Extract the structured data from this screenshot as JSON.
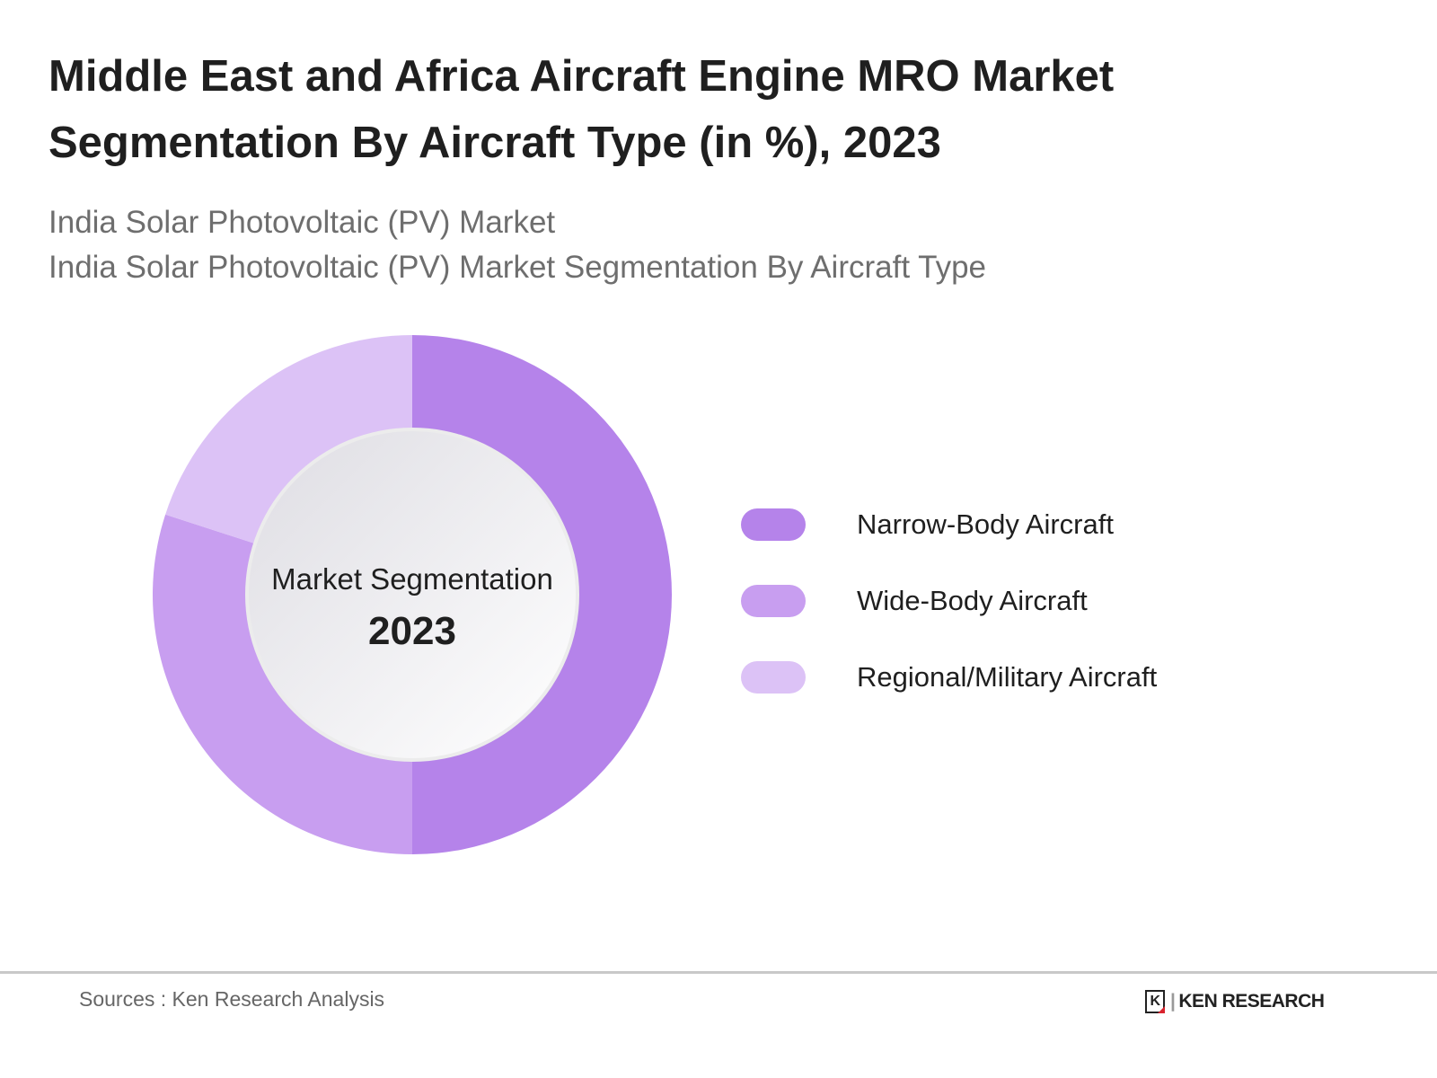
{
  "header": {
    "title_line1": "Middle East and Africa Aircraft Engine MRO Market",
    "title_line2": "Segmentation By Aircraft Type (in %), 2023",
    "subtitle_line1": "India Solar Photovoltaic (PV) Market",
    "subtitle_line2": "India Solar Photovoltaic (PV) Market Segmentation By Aircraft Type"
  },
  "chart_data": {
    "type": "pie",
    "variant": "donut",
    "center_label": "Market Segmentation",
    "center_year": "2023",
    "categories": [
      "Narrow-Body Aircraft",
      "Wide-Body Aircraft",
      "Regional/Military Aircraft"
    ],
    "values": [
      50,
      30,
      20
    ],
    "colors": [
      "#b583ea",
      "#c89ef0",
      "#dcc2f6"
    ],
    "legend_position": "right"
  },
  "footer": {
    "source": "Sources : Ken Research Analysis",
    "logo_text": "KEN RESEARCH",
    "logo_letter": "K"
  }
}
